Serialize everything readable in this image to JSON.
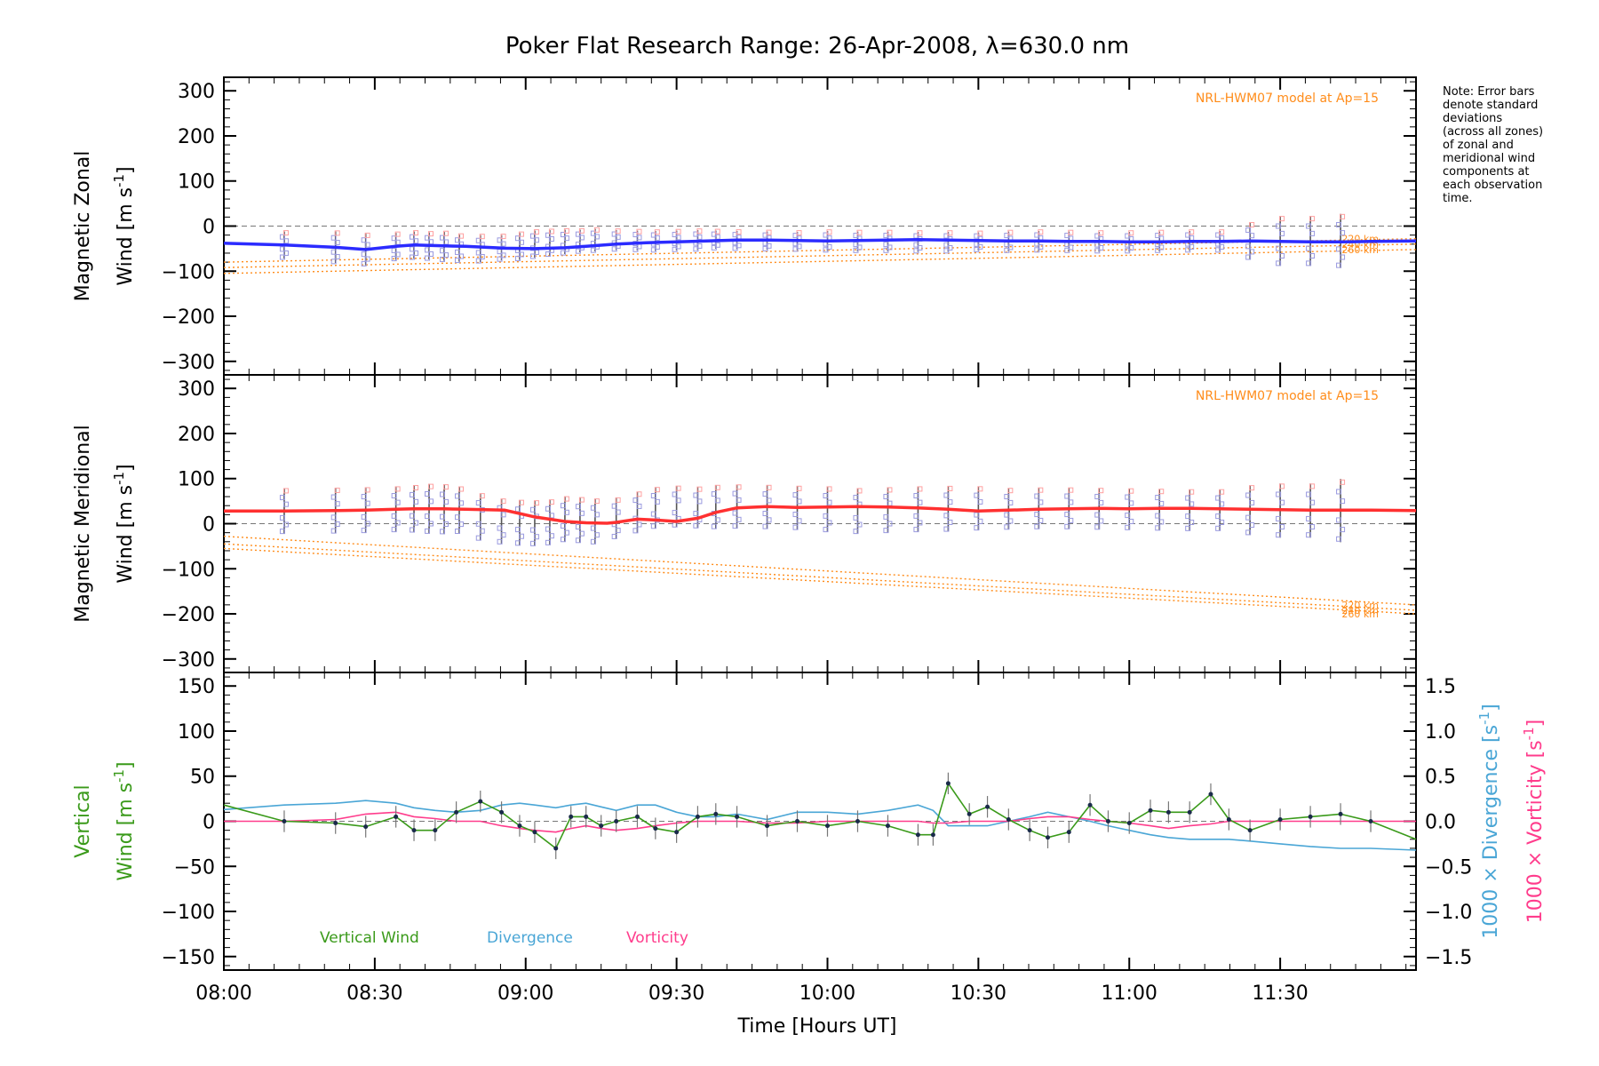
{
  "title": "Poker Flat Research Range: 26-Apr-2008, λ=630.0 nm",
  "note": "Note: Error bars\ndenote standard\ndeviations\n(across all zones)\nof zonal and\nmeridional wind\ncomponents at\neach observation\ntime.",
  "colors": {
    "zonal": "#2b2bff",
    "meridional": "#ff3030",
    "model": "#ff8c1a",
    "vertical": "#3a9a1a",
    "divergence": "#4aa6d6",
    "vorticity": "#ff3c8c",
    "zone_markers": "#9a9ae0",
    "errorbar": "#555555"
  },
  "chart_data": [
    {
      "type": "line",
      "panel": "zonal",
      "ylabel_line1": "Magnetic Zonal",
      "ylabel_line2": "Wind [m s",
      "ylabel_sup": "-1",
      "ylabel_end": "]",
      "ylim": [
        -330,
        330
      ],
      "yticks": [
        300,
        200,
        100,
        0,
        -100,
        -200,
        -300
      ],
      "ytick_labels": [
        "300",
        "200",
        "100",
        "0",
        "−100",
        "−200",
        "−300"
      ],
      "model_label": "NRL-HWM07 model at Ap=15",
      "model_heights": [
        "220 km",
        "240 km",
        "260 km"
      ],
      "model_series": [
        {
          "label": "220 km",
          "x": [
            0,
            3.95
          ],
          "y": [
            -80,
            -28
          ]
        },
        {
          "label": "240 km",
          "x": [
            0,
            3.95
          ],
          "y": [
            -92,
            -40
          ]
        },
        {
          "label": "260 km",
          "x": [
            0,
            3.95
          ],
          "y": [
            -105,
            -52
          ]
        }
      ],
      "x": [
        0.0,
        0.2,
        0.37,
        0.47,
        0.57,
        0.63,
        0.73,
        0.8,
        0.93,
        1.03,
        1.13,
        1.2,
        1.3,
        1.4,
        1.5,
        1.6,
        1.7,
        1.8,
        1.9,
        2.0,
        2.1,
        2.2,
        2.3,
        2.4,
        2.5,
        2.6,
        2.7,
        2.8,
        2.9,
        3.0,
        3.1,
        3.2,
        3.3,
        3.4,
        3.5,
        3.6,
        3.7,
        3.8,
        3.95
      ],
      "y": [
        -38,
        -42,
        -47,
        -52,
        -45,
        -42,
        -44,
        -45,
        -49,
        -50,
        -48,
        -45,
        -40,
        -37,
        -35,
        -33,
        -31,
        -31,
        -32,
        -33,
        -32,
        -31,
        -30,
        -31,
        -32,
        -33,
        -33,
        -34,
        -34,
        -35,
        -35,
        -34,
        -34,
        -33,
        -34,
        -35,
        -35,
        -34,
        -33
      ],
      "errorbar_x": [
        0.2,
        0.37,
        0.47,
        0.57,
        0.63,
        0.68,
        0.73,
        0.78,
        0.85,
        0.92,
        0.98,
        1.03,
        1.08,
        1.13,
        1.18,
        1.23,
        1.3,
        1.37,
        1.43,
        1.5,
        1.57,
        1.63,
        1.7,
        1.8,
        1.9,
        2.0,
        2.1,
        2.2,
        2.3,
        2.4,
        2.5,
        2.6,
        2.7,
        2.8,
        2.9,
        3.0,
        3.1,
        3.2,
        3.3,
        3.4,
        3.5,
        3.6,
        3.7
      ],
      "errorbar_halfwidth": [
        30,
        35,
        35,
        30,
        30,
        30,
        32,
        30,
        30,
        28,
        30,
        30,
        28,
        27,
        25,
        25,
        22,
        22,
        22,
        22,
        22,
        20,
        20,
        20,
        20,
        22,
        22,
        22,
        22,
        22,
        20,
        22,
        22,
        22,
        22,
        22,
        22,
        22,
        22,
        40,
        55,
        55,
        60
      ]
    },
    {
      "type": "line",
      "panel": "meridional",
      "ylabel_line1": "Magnetic Meridional",
      "ylabel_line2": "Wind [m s",
      "ylabel_sup": "-1",
      "ylabel_end": "]",
      "ylim": [
        -330,
        330
      ],
      "yticks": [
        300,
        200,
        100,
        0,
        -100,
        -200,
        -300
      ],
      "ytick_labels": [
        "300",
        "200",
        "100",
        "0",
        "−100",
        "−200",
        "−300"
      ],
      "model_label": "NRL-HWM07 model at Ap=15",
      "model_heights": [
        "220 km",
        "240 km",
        "260 km"
      ],
      "model_series": [
        {
          "label": "220 km",
          "x": [
            0,
            3.95
          ],
          "y": [
            -28,
            -180
          ]
        },
        {
          "label": "240 km",
          "x": [
            0,
            3.95
          ],
          "y": [
            -45,
            -192
          ]
        },
        {
          "label": "260 km",
          "x": [
            0,
            3.95
          ],
          "y": [
            -55,
            -200
          ]
        }
      ],
      "x": [
        0.0,
        0.2,
        0.37,
        0.47,
        0.57,
        0.63,
        0.73,
        0.8,
        0.93,
        1.03,
        1.13,
        1.2,
        1.27,
        1.3,
        1.37,
        1.43,
        1.5,
        1.57,
        1.63,
        1.7,
        1.8,
        1.9,
        2.0,
        2.1,
        2.2,
        2.3,
        2.4,
        2.5,
        2.6,
        2.7,
        2.8,
        2.9,
        3.0,
        3.1,
        3.2,
        3.3,
        3.4,
        3.5,
        3.6,
        3.7,
        3.8,
        3.95
      ],
      "y": [
        28,
        28,
        29,
        30,
        32,
        33,
        33,
        32,
        30,
        15,
        5,
        2,
        1,
        3,
        10,
        8,
        5,
        12,
        25,
        35,
        38,
        36,
        37,
        38,
        37,
        35,
        32,
        28,
        30,
        32,
        33,
        34,
        33,
        34,
        34,
        33,
        32,
        31,
        30,
        30,
        30,
        29
      ],
      "errorbar_x": [
        0.2,
        0.37,
        0.47,
        0.57,
        0.63,
        0.68,
        0.73,
        0.78,
        0.85,
        0.92,
        0.98,
        1.03,
        1.08,
        1.13,
        1.18,
        1.23,
        1.3,
        1.37,
        1.43,
        1.5,
        1.57,
        1.63,
        1.7,
        1.8,
        1.9,
        2.0,
        2.1,
        2.2,
        2.3,
        2.4,
        2.5,
        2.6,
        2.7,
        2.8,
        2.9,
        3.0,
        3.1,
        3.2,
        3.3,
        3.4,
        3.5,
        3.6,
        3.7
      ],
      "errorbar_halfwidth": [
        50,
        50,
        50,
        50,
        52,
        55,
        55,
        52,
        52,
        50,
        50,
        50,
        50,
        50,
        50,
        50,
        45,
        45,
        45,
        45,
        45,
        48,
        48,
        48,
        48,
        50,
        50,
        50,
        50,
        50,
        48,
        45,
        45,
        45,
        45,
        45,
        45,
        45,
        45,
        55,
        60,
        60,
        70
      ]
    },
    {
      "type": "line",
      "panel": "vertical",
      "ylabel_line1": "Vertical",
      "ylabel_line2": "Wind [m s",
      "ylabel_sup": "-1",
      "ylabel_end": "]",
      "ylim": [
        -165,
        165
      ],
      "yticks": [
        150,
        100,
        50,
        0,
        -50,
        -100,
        -150
      ],
      "ytick_labels": [
        "150",
        "100",
        "50",
        "0",
        "−50",
        "−100",
        "−150"
      ],
      "y2_label_div": "1000 × Divergence [s",
      "y2_label_vort": "1000 × Vorticity [s",
      "y2_sup": "-1",
      "y2_end": "]",
      "y2lim": [
        -1.65,
        1.65
      ],
      "y2ticks": [
        1.5,
        1.0,
        0.5,
        0.0,
        -0.5,
        -1.0,
        -1.5
      ],
      "y2tick_labels": [
        "1.5",
        "1.0",
        "0.5",
        "0.0",
        "−0.5",
        "−1.0",
        "−1.5"
      ],
      "legend": [
        "Vertical Wind",
        "Divergence",
        "Vorticity"
      ],
      "series": [
        {
          "name": "Vertical Wind",
          "x": [
            0.0,
            0.2,
            0.37,
            0.47,
            0.57,
            0.63,
            0.7,
            0.77,
            0.85,
            0.92,
            0.98,
            1.03,
            1.1,
            1.15,
            1.2,
            1.25,
            1.3,
            1.37,
            1.43,
            1.5,
            1.57,
            1.63,
            1.7,
            1.8,
            1.9,
            2.0,
            2.1,
            2.2,
            2.3,
            2.35,
            2.4,
            2.47,
            2.53,
            2.6,
            2.67,
            2.73,
            2.8,
            2.87,
            2.93,
            3.0,
            3.07,
            3.13,
            3.2,
            3.27,
            3.33,
            3.4,
            3.5,
            3.6,
            3.7,
            3.8,
            3.95
          ],
          "y": [
            18,
            0,
            -2,
            -6,
            5,
            -10,
            -10,
            10,
            22,
            10,
            -5,
            -12,
            -30,
            5,
            5,
            -5,
            0,
            5,
            -8,
            -12,
            5,
            8,
            5,
            -5,
            0,
            -5,
            0,
            -5,
            -15,
            -15,
            42,
            8,
            16,
            2,
            -10,
            -18,
            -12,
            18,
            0,
            -2,
            12,
            10,
            10,
            30,
            2,
            -10,
            2,
            5,
            8,
            0,
            -20
          ]
        },
        {
          "name": "Divergence",
          "x": [
            0.0,
            0.2,
            0.37,
            0.47,
            0.57,
            0.63,
            0.7,
            0.77,
            0.85,
            0.92,
            0.98,
            1.03,
            1.1,
            1.15,
            1.2,
            1.25,
            1.3,
            1.37,
            1.43,
            1.5,
            1.57,
            1.63,
            1.7,
            1.8,
            1.9,
            2.0,
            2.1,
            2.2,
            2.3,
            2.35,
            2.4,
            2.47,
            2.53,
            2.6,
            2.67,
            2.73,
            2.8,
            2.87,
            2.93,
            3.0,
            3.07,
            3.13,
            3.2,
            3.27,
            3.33,
            3.4,
            3.5,
            3.6,
            3.7,
            3.8,
            3.95
          ],
          "y": [
            0.13,
            0.18,
            0.2,
            0.23,
            0.2,
            0.15,
            0.12,
            0.1,
            0.12,
            0.18,
            0.2,
            0.18,
            0.15,
            0.18,
            0.2,
            0.16,
            0.12,
            0.18,
            0.18,
            0.1,
            0.05,
            0.05,
            0.08,
            0.02,
            0.1,
            0.1,
            0.08,
            0.12,
            0.18,
            0.12,
            -0.05,
            -0.05,
            -0.05,
            0.0,
            0.05,
            0.1,
            0.05,
            0.0,
            -0.05,
            -0.1,
            -0.15,
            -0.18,
            -0.2,
            -0.2,
            -0.2,
            -0.22,
            -0.25,
            -0.28,
            -0.3,
            -0.3,
            -0.32
          ]
        },
        {
          "name": "Vorticity",
          "x": [
            0.0,
            0.2,
            0.37,
            0.47,
            0.57,
            0.63,
            0.7,
            0.77,
            0.85,
            0.92,
            0.98,
            1.03,
            1.1,
            1.15,
            1.2,
            1.25,
            1.3,
            1.37,
            1.43,
            1.5,
            1.57,
            1.63,
            1.7,
            1.8,
            1.9,
            2.0,
            2.1,
            2.2,
            2.3,
            2.35,
            2.4,
            2.47,
            2.53,
            2.6,
            2.67,
            2.73,
            2.8,
            2.87,
            2.93,
            3.0,
            3.07,
            3.13,
            3.2,
            3.27,
            3.33,
            3.4,
            3.5,
            3.6,
            3.7,
            3.8,
            3.95
          ],
          "y": [
            0.0,
            0.0,
            0.02,
            0.08,
            0.1,
            0.05,
            0.03,
            0.0,
            0.0,
            -0.05,
            -0.08,
            -0.1,
            -0.12,
            -0.08,
            -0.05,
            -0.08,
            -0.1,
            -0.08,
            -0.05,
            -0.02,
            0.0,
            0.0,
            0.0,
            -0.02,
            -0.02,
            0.0,
            0.0,
            0.0,
            0.0,
            -0.02,
            -0.02,
            0.0,
            0.0,
            0.0,
            0.03,
            0.05,
            0.05,
            0.02,
            0.0,
            -0.02,
            -0.05,
            -0.08,
            -0.05,
            -0.03,
            0.0,
            0.0,
            0.0,
            0.0,
            0.0,
            0.0,
            0.0
          ]
        }
      ]
    }
  ],
  "xaxis": {
    "label": "Time [Hours UT]",
    "xlim": [
      0,
      3.95
    ],
    "ticks": [
      0,
      0.5,
      1.0,
      1.5,
      2.0,
      2.5,
      3.0,
      3.5
    ],
    "tick_labels": [
      "08:00",
      "08:30",
      "09:00",
      "09:30",
      "10:00",
      "10:30",
      "11:00",
      "11:30"
    ]
  }
}
